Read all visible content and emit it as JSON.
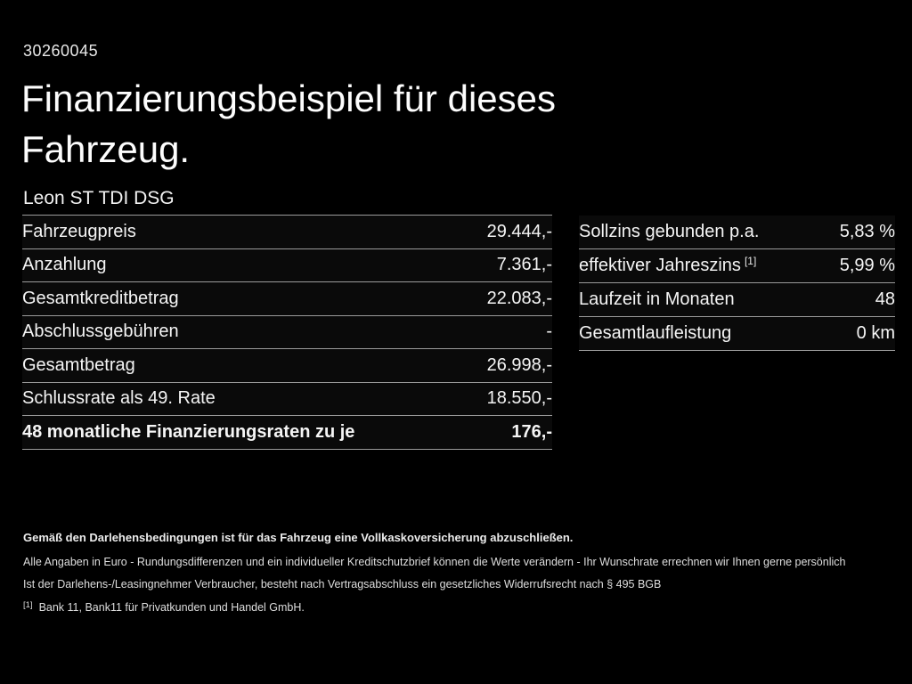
{
  "page": {
    "background_color": "#000000",
    "text_color": "#f5f5f5",
    "divider_color": "#9b9b9b"
  },
  "header": {
    "listing_id": "30260045",
    "title_line1": "Finanzierungsbeispiel für dieses",
    "title_line2": "Fahrzeug.",
    "vehicle_model": "Leon ST TDI DSG"
  },
  "financing_table": {
    "rows": [
      {
        "label": "Fahrzeugpreis",
        "value": "29.444,-"
      },
      {
        "label": "Anzahlung",
        "value": "7.361,-"
      },
      {
        "label": "Gesamtkreditbetrag",
        "value": "22.083,-"
      },
      {
        "label": "Abschlussgebühren",
        "value": "-"
      },
      {
        "label": "Gesamtbetrag",
        "value": "26.998,-"
      },
      {
        "label": "Schlussrate als 49. Rate",
        "value": "18.550,-"
      },
      {
        "label": "48 monatliche Finanzierungsraten zu je",
        "value": "176,-"
      }
    ]
  },
  "terms_table": {
    "rows": [
      {
        "label": "Sollzins gebunden p.a.",
        "sup": "",
        "value": "5,83 %"
      },
      {
        "label": "effektiver Jahreszins",
        "sup": "[1]",
        "value": "5,99 %"
      },
      {
        "label": "Laufzeit in Monaten",
        "sup": "",
        "value": "48"
      },
      {
        "label": "Gesamtlaufleistung",
        "sup": "",
        "value": "0 km"
      }
    ]
  },
  "footer": {
    "insurance_note": "Gemäß den Darlehensbedingungen ist für das Fahrzeug eine Vollkaskoversicherung abzuschließen.",
    "disclaimer_line1": "Alle Angaben in Euro - Rundungsdifferenzen und ein individueller Kreditschutzbrief können die Werte verändern - Ihr Wunschrate errechnen wir Ihnen gerne persönlich",
    "disclaimer_line2": "Ist der Darlehens-/Leasingnehmer Verbraucher, besteht nach Vertragsabschluss ein gesetzliches Widerrufsrecht nach § 495 BGB",
    "footnote_marker": "[1]",
    "footnote_text": "Bank 11, Bank11 für Privatkunden und Handel GmbH."
  }
}
